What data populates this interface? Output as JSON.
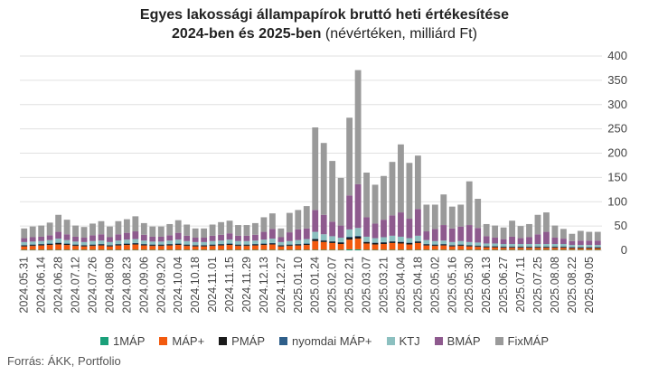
{
  "title": {
    "line1": "Egyes lakossági állampapírok bruttó heti értékesítése",
    "line2_bold": "2024-ben és 2025-ben",
    "line2_normal": " (névértéken, milliárd Ft)"
  },
  "source": "Forrás: ÁKK, Portfolio",
  "colors": {
    "1MÁP": "#1aa07a",
    "MÁP+": "#f25a0f",
    "PMÁP": "#1a1a1a",
    "nyomdai MÁP+": "#2f5f8a",
    "KTJ": "#8cc0c0",
    "BMÁP": "#8e5a8e",
    "FixMÁP": "#9a9a9a",
    "grid": "#e0e0e0",
    "axis_text": "#444444"
  },
  "chart_data": {
    "type": "bar",
    "stacked": true,
    "ylim": [
      0,
      400
    ],
    "yticks": [
      0,
      50,
      100,
      150,
      200,
      250,
      300,
      350,
      400
    ],
    "grid": true,
    "legend_position": "bottom",
    "x": [
      "2024.05.31",
      "2024.06.07",
      "2024.06.14",
      "2024.06.21",
      "2024.06.28",
      "2024.07.05",
      "2024.07.12",
      "2024.07.19",
      "2024.07.26",
      "2024.08.02",
      "2024.08.09",
      "2024.08.16",
      "2024.08.23",
      "2024.08.30",
      "2024.09.06",
      "2024.09.13",
      "2024.09.20",
      "2024.09.27",
      "2024.10.04",
      "2024.10.11",
      "2024.10.18",
      "2024.10.25",
      "2024.11.01",
      "2024.11.08",
      "2024.11.15",
      "2024.11.22",
      "2024.11.29",
      "2024.12.06",
      "2024.12.13",
      "2024.12.20",
      "2024.12.27",
      "2025.01.03",
      "2025.01.10",
      "2025.01.17",
      "2025.01.24",
      "2025.01.31",
      "2025.02.07",
      "2025.02.14",
      "2025.02.21",
      "2025.02.28",
      "2025.03.07",
      "2025.03.14",
      "2025.03.21",
      "2025.03.28",
      "2025.04.04",
      "2025.04.11",
      "2025.04.18",
      "2025.04.25",
      "2025.05.02",
      "2025.05.09",
      "2025.05.16",
      "2025.05.23",
      "2025.05.30",
      "2025.06.06",
      "2025.06.13",
      "2025.06.20",
      "2025.06.27",
      "2025.07.04",
      "2025.07.11",
      "2025.07.18",
      "2025.07.25",
      "2025.08.01",
      "2025.08.08",
      "2025.08.15",
      "2025.08.22",
      "2025.08.29",
      "2025.09.05",
      "2025.09.12"
    ],
    "tick_labels": [
      "2024.05.31",
      "2024.06.14",
      "2024.06.28",
      "2024.07.12",
      "2024.07.26",
      "2024.08.09",
      "2024.08.23",
      "2024.09.06",
      "2024.09.20",
      "2024.10.04",
      "2024.10.18",
      "2024.11.01",
      "2024.11.15",
      "2024.11.29",
      "2024.12.13",
      "2024.12.27",
      "2025.01.10",
      "2025.01.24",
      "2025.02.07",
      "2025.02.21",
      "2025.03.07",
      "2025.03.21",
      "2025.04.04",
      "2025.04.18",
      "2025.05.02",
      "2025.05.16",
      "2025.05.30",
      "2025.06.13",
      "2025.06.27",
      "2025.07.11",
      "2025.07.25",
      "2025.08.08",
      "2025.08.22",
      "2025.09.05"
    ],
    "series": [
      {
        "name": "1MÁP",
        "values": [
          1,
          1,
          1,
          1,
          1,
          1,
          1,
          1,
          1,
          1,
          1,
          1,
          1,
          1,
          1,
          1,
          1,
          1,
          1,
          1,
          1,
          1,
          1,
          1,
          1,
          1,
          1,
          1,
          1,
          1,
          1,
          1,
          1,
          1,
          1,
          1,
          1,
          1,
          2,
          2,
          1,
          1,
          1,
          1,
          1,
          1,
          1,
          1,
          1,
          1,
          1,
          1,
          1,
          1,
          1,
          1,
          1,
          1,
          1,
          1,
          1,
          1,
          1,
          1,
          1,
          1,
          1,
          1
        ]
      },
      {
        "name": "MÁP+",
        "values": [
          7,
          8,
          9,
          10,
          11,
          10,
          8,
          7,
          8,
          9,
          7,
          9,
          10,
          11,
          9,
          8,
          8,
          9,
          10,
          8,
          7,
          7,
          8,
          9,
          10,
          8,
          8,
          9,
          10,
          11,
          7,
          8,
          9,
          10,
          18,
          16,
          14,
          12,
          20,
          22,
          13,
          11,
          12,
          14,
          13,
          11,
          14,
          9,
          8,
          9,
          7,
          8,
          7,
          6,
          5,
          5,
          4,
          4,
          4,
          4,
          4,
          4,
          4,
          4,
          3,
          3,
          3,
          3
        ]
      },
      {
        "name": "PMÁP",
        "values": [
          2,
          2,
          2,
          2,
          3,
          2,
          2,
          2,
          2,
          2,
          2,
          2,
          2,
          2,
          2,
          2,
          2,
          2,
          2,
          2,
          2,
          2,
          2,
          2,
          2,
          2,
          2,
          2,
          2,
          2,
          2,
          2,
          2,
          2,
          4,
          3,
          3,
          3,
          4,
          4,
          3,
          3,
          3,
          3,
          3,
          3,
          3,
          2,
          2,
          2,
          2,
          2,
          2,
          2,
          2,
          2,
          2,
          2,
          2,
          2,
          2,
          2,
          2,
          2,
          2,
          2,
          2,
          2
        ]
      },
      {
        "name": "nyomdai MÁP+",
        "values": [
          1,
          1,
          1,
          1,
          1,
          1,
          1,
          1,
          1,
          1,
          1,
          1,
          1,
          1,
          1,
          1,
          1,
          1,
          1,
          1,
          1,
          1,
          1,
          1,
          1,
          1,
          1,
          1,
          1,
          1,
          1,
          1,
          1,
          1,
          1,
          1,
          1,
          1,
          2,
          2,
          1,
          1,
          1,
          1,
          1,
          1,
          1,
          1,
          1,
          1,
          1,
          1,
          1,
          1,
          1,
          1,
          1,
          1,
          1,
          1,
          1,
          1,
          1,
          1,
          1,
          1,
          1,
          1
        ]
      },
      {
        "name": "KTJ",
        "values": [
          6,
          6,
          6,
          7,
          8,
          7,
          6,
          6,
          7,
          7,
          6,
          7,
          8,
          8,
          7,
          6,
          6,
          7,
          8,
          7,
          6,
          6,
          7,
          7,
          8,
          7,
          7,
          7,
          8,
          9,
          6,
          7,
          8,
          9,
          14,
          12,
          10,
          9,
          15,
          16,
          10,
          9,
          10,
          11,
          10,
          9,
          11,
          8,
          7,
          7,
          6,
          7,
          6,
          6,
          5,
          5,
          5,
          5,
          5,
          5,
          5,
          5,
          5,
          5,
          4,
          4,
          4,
          4
        ]
      },
      {
        "name": "BMÁP",
        "values": [
          8,
          9,
          9,
          10,
          14,
          12,
          10,
          9,
          12,
          13,
          10,
          13,
          14,
          16,
          12,
          10,
          10,
          11,
          14,
          11,
          9,
          9,
          11,
          12,
          13,
          11,
          11,
          12,
          16,
          20,
          10,
          18,
          22,
          22,
          45,
          40,
          30,
          25,
          70,
          90,
          40,
          30,
          36,
          42,
          50,
          40,
          55,
          18,
          25,
          32,
          28,
          30,
          35,
          30,
          15,
          12,
          10,
          15,
          12,
          14,
          20,
          25,
          13,
          11,
          8,
          9,
          9,
          9
        ]
      },
      {
        "name": "FixMÁP",
        "values": [
          20,
          22,
          23,
          26,
          35,
          30,
          23,
          22,
          24,
          27,
          22,
          27,
          28,
          31,
          24,
          21,
          21,
          23,
          26,
          23,
          19,
          19,
          23,
          26,
          26,
          22,
          22,
          24,
          30,
          32,
          18,
          40,
          40,
          46,
          170,
          148,
          125,
          98,
          160,
          235,
          92,
          80,
          90,
          110,
          140,
          115,
          110,
          55,
          50,
          63,
          45,
          45,
          90,
          60,
          25,
          25,
          24,
          33,
          25,
          27,
          40,
          40,
          25,
          20,
          15,
          20,
          18,
          18
        ]
      }
    ]
  }
}
